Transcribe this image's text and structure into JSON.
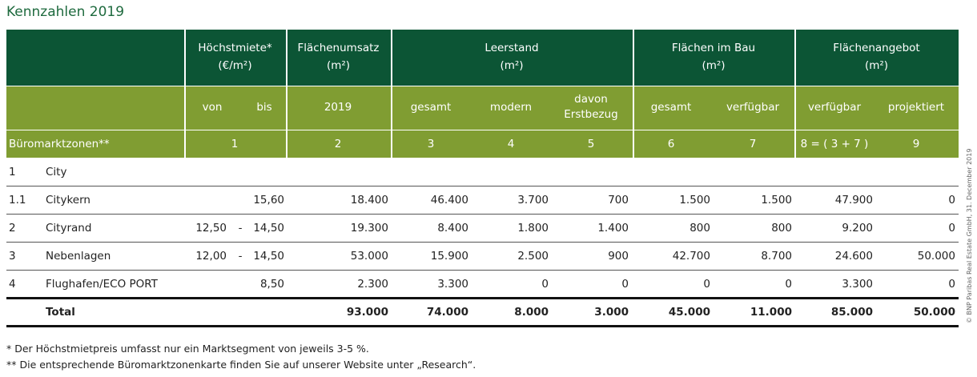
{
  "title": "Kennzahlen 2019",
  "table": {
    "groups": [
      {
        "name": "Höchstmiete*",
        "unit": "(€/m²)"
      },
      {
        "name": "Flächenumsatz",
        "unit": "(m²)"
      },
      {
        "name": "Leerstand",
        "unit": "(m²)"
      },
      {
        "name": "Flächen im Bau",
        "unit": "(m²)"
      },
      {
        "name": "Flächenangebot",
        "unit": "(m²)"
      }
    ],
    "subheaders": [
      "von",
      "bis",
      "2019",
      "gesamt",
      "modern",
      "davon Erstbezug",
      "gesamt",
      "verfügbar",
      "verfügbar",
      "projektiert"
    ],
    "zone_label": "Büromarktzonen**",
    "column_numbers": [
      "1",
      "2",
      "3",
      "4",
      "5",
      "6",
      "7",
      "8 = ( 3 + 7 )",
      "9"
    ],
    "range_separator": "-",
    "rows": [
      {
        "no": "1",
        "name": "City"
      },
      {
        "no": "1.1",
        "name": "Citykern",
        "bis": "15,60",
        "values": [
          "18.400",
          "46.400",
          "3.700",
          "700",
          "1.500",
          "1.500",
          "47.900",
          "0"
        ]
      },
      {
        "no": "2",
        "name": "Cityrand",
        "von": "12,50",
        "bis": "14,50",
        "values": [
          "19.300",
          "8.400",
          "1.800",
          "1.400",
          "800",
          "800",
          "9.200",
          "0"
        ]
      },
      {
        "no": "3",
        "name": "Nebenlagen",
        "von": "12,00",
        "bis": "14,50",
        "values": [
          "53.000",
          "15.900",
          "2.500",
          "900",
          "42.700",
          "8.700",
          "24.600",
          "50.000"
        ]
      },
      {
        "no": "4",
        "name": "Flughafen/ECO PORT",
        "bis": "8,50",
        "values": [
          "2.300",
          "3.300",
          "0",
          "0",
          "0",
          "0",
          "3.300",
          "0"
        ]
      }
    ],
    "total": {
      "name": "Total",
      "values": [
        "93.000",
        "74.000",
        "8.000",
        "3.000",
        "45.000",
        "11.000",
        "85.000",
        "50.000"
      ]
    }
  },
  "footnotes": [
    "*   Der Höchstmietpreis umfasst nur ein Marktsegment von jeweils 3-5 %.",
    "** Die entsprechende Büromarktzonenkarte finden Sie auf unserer Website unter „Research“."
  ],
  "copyright": "© BNP Paribas Real Estate GmbH, 31. December 2019"
}
